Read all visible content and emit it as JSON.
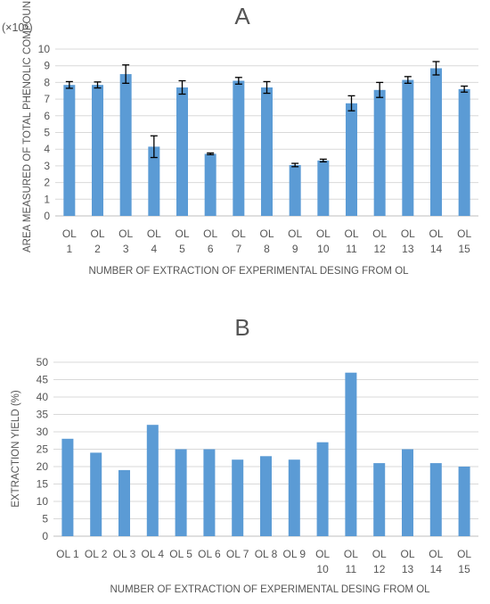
{
  "chart_data": [
    {
      "type": "bar",
      "panel_label": "A",
      "multiplier": "(×10⁶)",
      "xlabel": "NUMBER OF EXTRACTION OF EXPERIMENTAL DESING FROM OL",
      "ylabel": "AREA MEASURED OF TOTAL PHENOLIC COMPOUNDS",
      "ylim": [
        0,
        10
      ],
      "yticks": [
        "0",
        "1",
        "2",
        "3",
        "4",
        "5",
        "6",
        "7",
        "8",
        "9",
        "10"
      ],
      "grid": true,
      "categories": [
        [
          "OL",
          "1"
        ],
        [
          "OL",
          "2"
        ],
        [
          "OL",
          "3"
        ],
        [
          "OL",
          "4"
        ],
        [
          "OL",
          "5"
        ],
        [
          "OL",
          "6"
        ],
        [
          "OL",
          "7"
        ],
        [
          "OL",
          "8"
        ],
        [
          "OL",
          "9"
        ],
        [
          "OL",
          "10"
        ],
        [
          "OL",
          "11"
        ],
        [
          "OL",
          "12"
        ],
        [
          "OL",
          "13"
        ],
        [
          "OL",
          "14"
        ],
        [
          "OL",
          "15"
        ]
      ],
      "values": [
        7.85,
        7.85,
        8.5,
        4.15,
        7.7,
        3.72,
        8.1,
        7.7,
        3.05,
        3.32,
        6.75,
        7.55,
        8.15,
        8.85,
        7.6
      ],
      "errors": [
        0.2,
        0.18,
        0.55,
        0.65,
        0.4,
        0.05,
        0.2,
        0.35,
        0.1,
        0.08,
        0.45,
        0.45,
        0.2,
        0.4,
        0.18
      ],
      "color": "#5b9bd5"
    },
    {
      "type": "bar",
      "panel_label": "B",
      "xlabel": "NUMBER OF EXTRACTION OF EXPERIMENTAL DESING FROM OL",
      "ylabel": "EXTRACTION YIELD (%)",
      "ylim": [
        0,
        50
      ],
      "yticks": [
        "0",
        "5",
        "10",
        "15",
        "20",
        "25",
        "30",
        "35",
        "40",
        "45",
        "50"
      ],
      "grid": true,
      "categories": [
        [
          "OL 1"
        ],
        [
          "OL 2"
        ],
        [
          "OL 3"
        ],
        [
          "OL 4"
        ],
        [
          "OL 5"
        ],
        [
          "OL 6"
        ],
        [
          "OL 7"
        ],
        [
          "OL 8"
        ],
        [
          "OL 9"
        ],
        [
          "OL",
          "10"
        ],
        [
          "OL",
          "11"
        ],
        [
          "OL",
          "12"
        ],
        [
          "OL",
          "13"
        ],
        [
          "OL",
          "14"
        ],
        [
          "OL",
          "15"
        ]
      ],
      "values": [
        28,
        24,
        19,
        32,
        25,
        25,
        22,
        23,
        22,
        27,
        47,
        21,
        25,
        21,
        20
      ],
      "color": "#5b9bd5"
    }
  ]
}
